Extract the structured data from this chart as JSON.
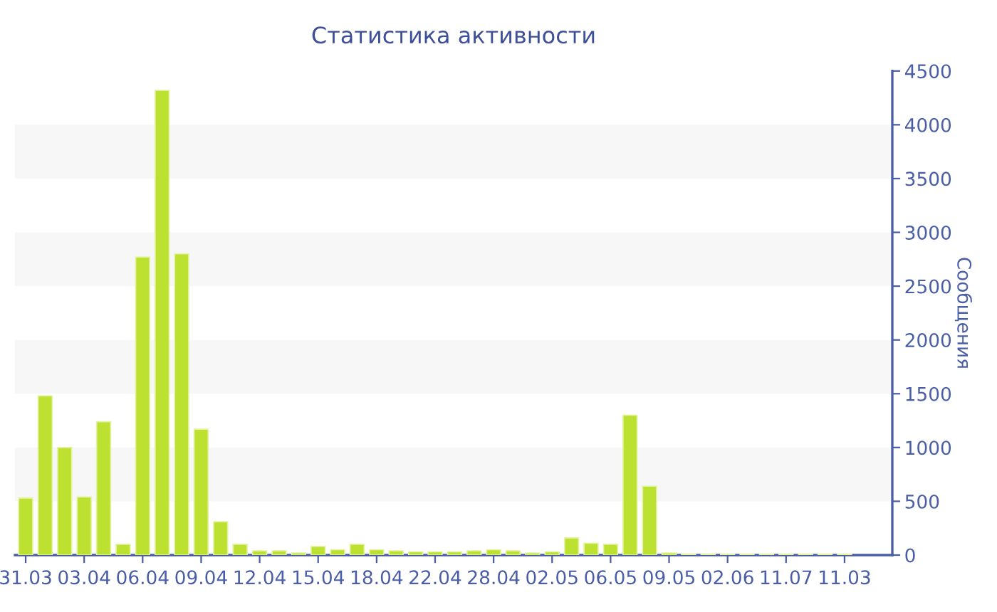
{
  "chart_data": {
    "type": "bar",
    "title": "Статистика активности",
    "ylabel": "Сообщения",
    "categories": [
      "31.03",
      null,
      null,
      "03.04",
      null,
      null,
      "06.04",
      null,
      null,
      "09.04",
      null,
      null,
      "12.04",
      null,
      null,
      "15.04",
      null,
      null,
      "18.04",
      null,
      null,
      "22.04",
      null,
      null,
      "28.04",
      null,
      null,
      "02.05",
      null,
      null,
      "06.05",
      null,
      null,
      "09.05",
      null,
      null,
      "02.06",
      null,
      null,
      "11.07",
      null,
      null,
      "11.03"
    ],
    "values": [
      530,
      1480,
      1000,
      540,
      1240,
      100,
      2770,
      4320,
      2800,
      1170,
      310,
      100,
      40,
      40,
      20,
      80,
      50,
      100,
      50,
      40,
      30,
      30,
      30,
      40,
      50,
      40,
      20,
      30,
      160,
      110,
      100,
      1300,
      640,
      20,
      10,
      10,
      10,
      10,
      10,
      10,
      10,
      10,
      10
    ],
    "color": "#bce131",
    "ylim": [
      0,
      4500
    ],
    "yticks": [
      0,
      500,
      1000,
      1500,
      2000,
      2500,
      3000,
      3500,
      4000,
      4500
    ],
    "bands": [
      {
        "axis": "y",
        "from": 500,
        "to": 1000,
        "color": "#f7f7f7"
      },
      {
        "axis": "y",
        "from": 1500,
        "to": 2000,
        "color": "#f7f7f7"
      },
      {
        "axis": "y",
        "from": 2500,
        "to": 3000,
        "color": "#f7f7f7"
      },
      {
        "axis": "y",
        "from": 3500,
        "to": 4000,
        "color": "#f7f7f7"
      }
    ],
    "grid": false,
    "legend": false
  }
}
